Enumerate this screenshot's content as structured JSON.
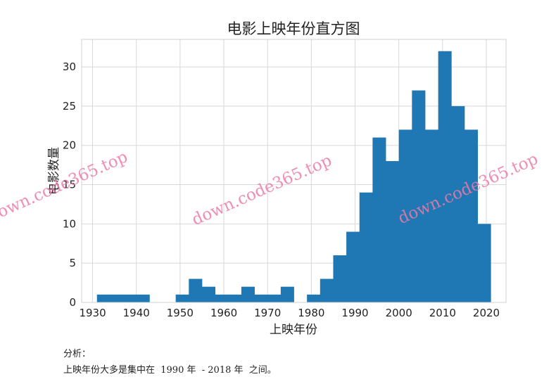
{
  "chart_data": {
    "type": "histogram",
    "title": "电影上映年份直方图",
    "xlabel": "上映年份",
    "ylabel": "电影数量",
    "xlim": [
      1927.5,
      2024.5
    ],
    "ylim": [
      0,
      33.5
    ],
    "x_ticks": [
      1930,
      1940,
      1950,
      1960,
      1970,
      1980,
      1990,
      2000,
      2010,
      2020
    ],
    "y_ticks": [
      0,
      5,
      10,
      15,
      20,
      25,
      30
    ],
    "grid": true,
    "bar_color": "#1f77b4",
    "bins": [
      {
        "start": 1931,
        "end": 1934,
        "count": 1
      },
      {
        "start": 1934,
        "end": 1937,
        "count": 1
      },
      {
        "start": 1937,
        "end": 1940,
        "count": 1
      },
      {
        "start": 1940,
        "end": 1943,
        "count": 1
      },
      {
        "start": 1943,
        "end": 1946,
        "count": 0
      },
      {
        "start": 1946,
        "end": 1949,
        "count": 0
      },
      {
        "start": 1949,
        "end": 1952,
        "count": 1
      },
      {
        "start": 1952,
        "end": 1955,
        "count": 3
      },
      {
        "start": 1955,
        "end": 1958,
        "count": 2
      },
      {
        "start": 1958,
        "end": 1961,
        "count": 1
      },
      {
        "start": 1961,
        "end": 1964,
        "count": 1
      },
      {
        "start": 1964,
        "end": 1967,
        "count": 2
      },
      {
        "start": 1967,
        "end": 1970,
        "count": 1
      },
      {
        "start": 1970,
        "end": 1973,
        "count": 1
      },
      {
        "start": 1973,
        "end": 1976,
        "count": 2
      },
      {
        "start": 1976,
        "end": 1979,
        "count": 0
      },
      {
        "start": 1979,
        "end": 1982,
        "count": 1
      },
      {
        "start": 1982,
        "end": 1985,
        "count": 3
      },
      {
        "start": 1985,
        "end": 1988,
        "count": 6
      },
      {
        "start": 1988,
        "end": 1991,
        "count": 9
      },
      {
        "start": 1991,
        "end": 1994,
        "count": 14
      },
      {
        "start": 1994,
        "end": 1997,
        "count": 21
      },
      {
        "start": 1997,
        "end": 2000,
        "count": 18
      },
      {
        "start": 2000,
        "end": 2003,
        "count": 22
      },
      {
        "start": 2003,
        "end": 2006,
        "count": 27
      },
      {
        "start": 2006,
        "end": 2009,
        "count": 22
      },
      {
        "start": 2009,
        "end": 2012,
        "count": 32
      },
      {
        "start": 2012,
        "end": 2015,
        "count": 25
      },
      {
        "start": 2015,
        "end": 2018,
        "count": 22
      },
      {
        "start": 2018,
        "end": 2021,
        "count": 10
      }
    ]
  },
  "watermarks": [
    "down.code365.top",
    "down.code365.top",
    "down.code365.top"
  ],
  "analysis": {
    "heading": "分析：",
    "text": "上映年份大多是集中在  1990 年  - 2018 年  之间。"
  }
}
